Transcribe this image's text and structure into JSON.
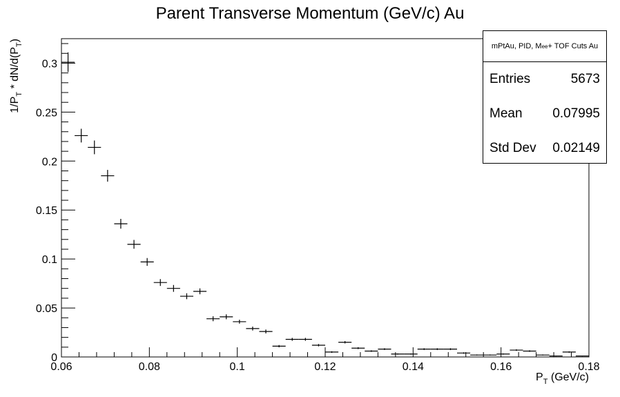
{
  "chart_data": {
    "type": "histogram",
    "title": "Parent Transverse Momentum (GeV/c) Au",
    "xlabel": "P_T (GeV/c)",
    "ylabel": "1/P_T * dN/d(P_T)",
    "xlim": [
      0.06,
      0.18
    ],
    "ylim": [
      0,
      0.325
    ],
    "x_ticks": [
      "0.06",
      "0.08",
      "0.1",
      "0.12",
      "0.14",
      "0.16",
      "0.18"
    ],
    "y_ticks": [
      "0",
      "0.05",
      "0.1",
      "0.15",
      "0.2",
      "0.25",
      "0.3"
    ],
    "grid": false,
    "stats_box": {
      "title_main": "mPtAu, PID, M",
      "title_sub": "ee",
      "title_end": " + TOF Cuts Au",
      "rows": [
        {
          "label": "Entries",
          "value": "5673"
        },
        {
          "label": "Mean",
          "value": "0.07995"
        },
        {
          "label": "Std Dev",
          "value": "0.02149"
        }
      ]
    },
    "points": [
      {
        "x": 0.0615,
        "y": 0.301,
        "err": 0.01
      },
      {
        "x": 0.0645,
        "y": 0.226,
        "err": 0.007
      },
      {
        "x": 0.0675,
        "y": 0.214,
        "err": 0.007
      },
      {
        "x": 0.0705,
        "y": 0.185,
        "err": 0.006
      },
      {
        "x": 0.0735,
        "y": 0.136,
        "err": 0.005
      },
      {
        "x": 0.0765,
        "y": 0.115,
        "err": 0.0045
      },
      {
        "x": 0.0795,
        "y": 0.097,
        "err": 0.004
      },
      {
        "x": 0.0825,
        "y": 0.076,
        "err": 0.0035
      },
      {
        "x": 0.0855,
        "y": 0.07,
        "err": 0.0035
      },
      {
        "x": 0.0885,
        "y": 0.062,
        "err": 0.003
      },
      {
        "x": 0.0915,
        "y": 0.067,
        "err": 0.003
      },
      {
        "x": 0.0945,
        "y": 0.039,
        "err": 0.0025
      },
      {
        "x": 0.0975,
        "y": 0.041,
        "err": 0.0025
      },
      {
        "x": 0.1005,
        "y": 0.036,
        "err": 0.002
      },
      {
        "x": 0.1035,
        "y": 0.029,
        "err": 0.002
      },
      {
        "x": 0.1065,
        "y": 0.026,
        "err": 0.002
      },
      {
        "x": 0.1095,
        "y": 0.011,
        "err": 0.0012
      },
      {
        "x": 0.1125,
        "y": 0.018,
        "err": 0.0015
      },
      {
        "x": 0.1155,
        "y": 0.018,
        "err": 0.0015
      },
      {
        "x": 0.1185,
        "y": 0.012,
        "err": 0.0012
      },
      {
        "x": 0.1215,
        "y": 0.005,
        "err": 0.0008
      },
      {
        "x": 0.1245,
        "y": 0.015,
        "err": 0.0012
      },
      {
        "x": 0.1275,
        "y": 0.009,
        "err": 0.001
      },
      {
        "x": 0.1305,
        "y": 0.006,
        "err": 0.0008
      },
      {
        "x": 0.1335,
        "y": 0.008,
        "err": 0.0009
      },
      {
        "x": 0.1365,
        "y": 0.003,
        "err": 0.0006
      },
      {
        "x": 0.1395,
        "y": 0.003,
        "err": 0.0006
      },
      {
        "x": 0.1425,
        "y": 0.008,
        "err": 0.0009
      },
      {
        "x": 0.1455,
        "y": 0.008,
        "err": 0.0009
      },
      {
        "x": 0.1485,
        "y": 0.008,
        "err": 0.0009
      },
      {
        "x": 0.1515,
        "y": 0.004,
        "err": 0.0007
      },
      {
        "x": 0.1545,
        "y": 0.002,
        "err": 0.0005
      },
      {
        "x": 0.1575,
        "y": 0.002,
        "err": 0.0005
      },
      {
        "x": 0.1605,
        "y": 0.003,
        "err": 0.0006
      },
      {
        "x": 0.1635,
        "y": 0.007,
        "err": 0.0008
      },
      {
        "x": 0.1665,
        "y": 0.006,
        "err": 0.0008
      },
      {
        "x": 0.1695,
        "y": 0.002,
        "err": 0.0005
      },
      {
        "x": 0.1725,
        "y": 0.001,
        "err": 0.0004
      },
      {
        "x": 0.1755,
        "y": 0.005,
        "err": 0.0007
      },
      {
        "x": 0.1785,
        "y": 0.001,
        "err": 0.0004
      }
    ]
  }
}
